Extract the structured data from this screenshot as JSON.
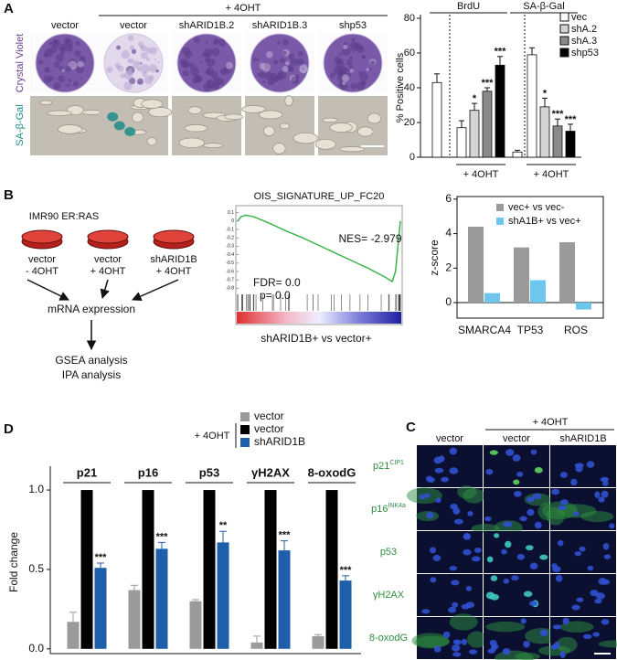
{
  "panel_labels": [
    "A",
    "B",
    "C",
    "D"
  ],
  "photos": {
    "treatment": "+ 4OHT",
    "columns": [
      "vector",
      "vector",
      "shARID1B.2",
      "shARID1B.3",
      "shp53"
    ],
    "rows": [
      "Crystal Violet",
      "SA-β-Gal"
    ]
  },
  "diagram": {
    "cell_line": "IMR90 ER:RAS",
    "dishes": [
      {
        "name": "vector",
        "treatment": "- 4OHT"
      },
      {
        "name": "vector",
        "treatment": "+ 4OHT"
      },
      {
        "name": "shARID1B",
        "treatment": "+ 4OHT"
      }
    ],
    "steps": [
      "mRNA expression",
      "GSEA analysis",
      "IPA analysis"
    ]
  },
  "microscopy": {
    "treatment": "+ 4OHT",
    "columns": [
      "vector",
      "vector",
      "shARID1B"
    ],
    "rows": [
      {
        "name": "p21",
        "sup": "CIP1"
      },
      {
        "name": "p16",
        "sup": "INK4a"
      },
      {
        "name": "p53"
      },
      {
        "name": "γH2AX"
      },
      {
        "name": "8-oxodG"
      }
    ]
  },
  "chart_data": [
    {
      "type": "bar",
      "ylabel": "% Positive cells",
      "ylim": [
        0,
        80
      ],
      "yticks": [
        0,
        20,
        40,
        60,
        80
      ],
      "treatment": "+ 4OHT",
      "colors": [
        "#ffffff",
        "#ffffff",
        "#d4d4d4",
        "#8a8a8a",
        "#000000"
      ],
      "groups": [
        {
          "name": "BrdU",
          "values": [
            43,
            17,
            27,
            38,
            53
          ],
          "errors": [
            5,
            4,
            4,
            2,
            5
          ],
          "significance": [
            null,
            null,
            "*",
            "***",
            "***"
          ]
        },
        {
          "name": "SA-β-Gal",
          "values": [
            3,
            59,
            29,
            18,
            15
          ],
          "errors": [
            1,
            4,
            5,
            4,
            4
          ],
          "significance": [
            null,
            null,
            "*",
            "***",
            "***"
          ]
        }
      ],
      "legend": [
        {
          "name": "vec",
          "color": "#ffffff"
        },
        {
          "name": "shA.2",
          "color": "#d4d4d4"
        },
        {
          "name": "shA.3",
          "color": "#8a8a8a"
        },
        {
          "name": "shp53",
          "color": "#000000"
        }
      ]
    },
    {
      "type": "bar",
      "ylabel": "z-score",
      "ylim": [
        -0.9,
        6.15
      ],
      "yticks": [
        0,
        2,
        4,
        6
      ],
      "categories": [
        "SMARCA4",
        "TP53",
        "ROS"
      ],
      "series": [
        {
          "name": "vec+ vs vec-",
          "color": "#9a9a9a",
          "values": [
            4.4,
            3.2,
            3.5
          ]
        },
        {
          "name": "shA1B+ vs vec+",
          "color": "#6cc6ee",
          "values": [
            0.55,
            1.3,
            -0.4
          ]
        }
      ]
    },
    {
      "type": "line",
      "title": "OIS_SIGNATURE_UP_FC20",
      "xlabel": "shARID1B+ vs vector+",
      "annotations": [
        "NES= -2.979",
        "FDR= 0.0",
        "p= 0.0"
      ],
      "xlim": [
        0,
        100
      ],
      "ylim": [
        -0.85,
        0.15
      ],
      "yticks": [
        0.1,
        0,
        -0.1,
        -0.2,
        -0.3,
        -0.4,
        -0.5,
        -0.6,
        -0.7,
        -0.8
      ],
      "color": "#3cb44b",
      "x": [
        0,
        2,
        5,
        10,
        20,
        30,
        40,
        50,
        60,
        70,
        80,
        90,
        95,
        97,
        100
      ],
      "values": [
        0,
        0.05,
        0.07,
        0.05,
        -0.03,
        -0.12,
        -0.2,
        -0.29,
        -0.38,
        -0.47,
        -0.56,
        -0.66,
        -0.72,
        -0.6,
        0
      ]
    },
    {
      "type": "bar",
      "ylabel": "Fold change",
      "ylim": [
        -0.03,
        1.15
      ],
      "yticks": [
        {
          "value": 0,
          "label": "0.0"
        },
        {
          "value": 0.5,
          "label": "0.5"
        },
        {
          "value": 1,
          "label": "1.0"
        }
      ],
      "treatment": "+ 4OHT",
      "categories": [
        "p21",
        "p16",
        "p53",
        "γH2AX",
        "8-oxodG"
      ],
      "series": [
        {
          "name": "vector",
          "color": "#9a9a9a",
          "values": [
            0.17,
            0.37,
            0.3,
            0.04,
            0.08
          ],
          "errors": [
            0.06,
            0.03,
            0.01,
            0.04,
            0.01
          ]
        },
        {
          "name": "vector",
          "color": "#000000",
          "values": [
            1,
            1,
            1,
            1,
            1
          ]
        },
        {
          "name": "shARID1B",
          "color": "#1f5ea8",
          "values": [
            0.51,
            0.63,
            0.67,
            0.62,
            0.43
          ],
          "errors": [
            0.03,
            0.04,
            0.07,
            0.06,
            0.03
          ],
          "significance": [
            "***",
            "***",
            "**",
            "***",
            "***"
          ]
        }
      ]
    }
  ]
}
